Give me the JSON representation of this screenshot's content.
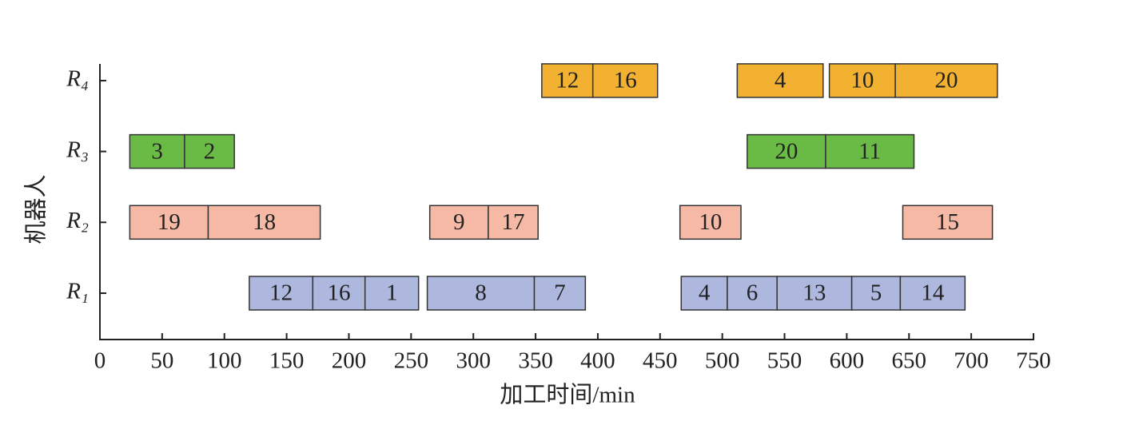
{
  "chart_data": {
    "type": "gantt",
    "xlabel": "加工时间/min",
    "ylabel": "机器人",
    "xlim": [
      0,
      750
    ],
    "xticks": [
      0,
      50,
      100,
      150,
      200,
      250,
      300,
      350,
      400,
      450,
      500,
      550,
      600,
      650,
      700,
      750
    ],
    "categories": [
      "R₁",
      "R₂",
      "R₃",
      "R₄"
    ],
    "series": [
      {
        "color": "#aeb8de",
        "tasks": [
          {
            "label": "12",
            "start": 120,
            "end": 171
          },
          {
            "label": "16",
            "start": 171,
            "end": 213
          },
          {
            "label": "1",
            "start": 213,
            "end": 256
          },
          {
            "label": "8",
            "start": 263,
            "end": 349
          },
          {
            "label": "7",
            "start": 349,
            "end": 390
          },
          {
            "label": "4",
            "start": 467,
            "end": 504
          },
          {
            "label": "6",
            "start": 504,
            "end": 544
          },
          {
            "label": "13",
            "start": 544,
            "end": 604
          },
          {
            "label": "5",
            "start": 604,
            "end": 643
          },
          {
            "label": "14",
            "start": 643,
            "end": 695
          }
        ]
      },
      {
        "color": "#f6b9a6",
        "tasks": [
          {
            "label": "19",
            "start": 24,
            "end": 87
          },
          {
            "label": "18",
            "start": 87,
            "end": 177
          },
          {
            "label": "9",
            "start": 265,
            "end": 312
          },
          {
            "label": "17",
            "start": 312,
            "end": 352
          },
          {
            "label": "10",
            "start": 466,
            "end": 515
          },
          {
            "label": "15",
            "start": 645,
            "end": 717
          }
        ]
      },
      {
        "color": "#6abb45",
        "tasks": [
          {
            "label": "3",
            "start": 24,
            "end": 68
          },
          {
            "label": "2",
            "start": 68,
            "end": 108
          },
          {
            "label": "20",
            "start": 520,
            "end": 583
          },
          {
            "label": "11",
            "start": 583,
            "end": 654
          }
        ]
      },
      {
        "color": "#f2b131",
        "tasks": [
          {
            "label": "12",
            "start": 355,
            "end": 396
          },
          {
            "label": "16",
            "start": 396,
            "end": 448
          },
          {
            "label": "4",
            "start": 512,
            "end": 581
          },
          {
            "label": "10",
            "start": 586,
            "end": 639
          },
          {
            "label": "20",
            "start": 639,
            "end": 721
          }
        ]
      }
    ]
  }
}
